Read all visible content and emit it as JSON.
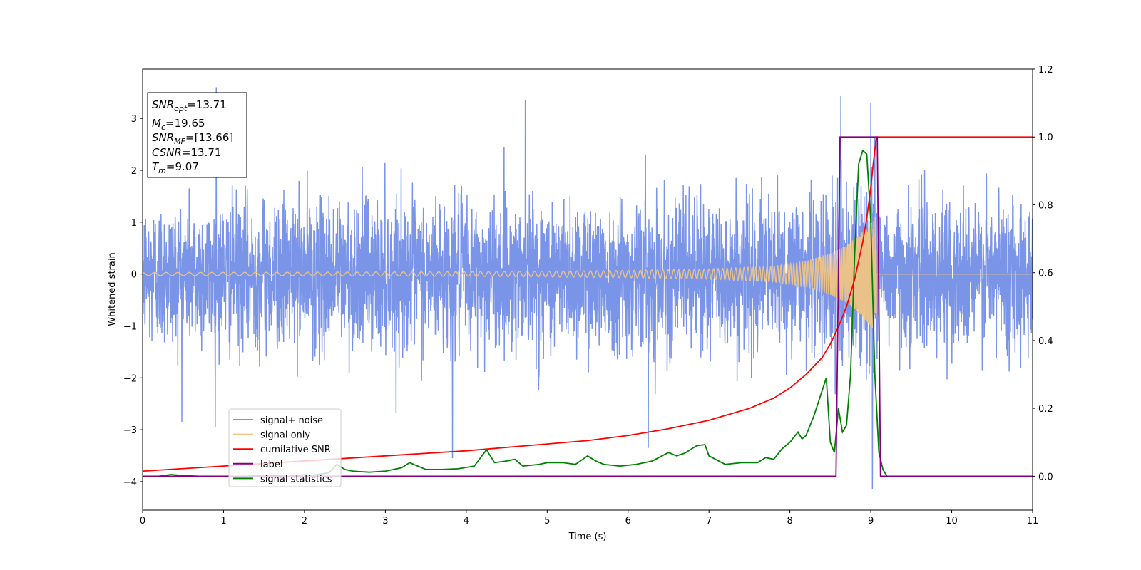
{
  "chart_data": {
    "type": "line",
    "xlabel": "Time (s)",
    "ylabel_left": "Whitened strain",
    "ylabel_right": "",
    "xlim": [
      0,
      11
    ],
    "ylim_left": [
      -4.55,
      3.95
    ],
    "ylim_right": [
      -0.1,
      1.2
    ],
    "x_ticks": [
      "0",
      "1",
      "2",
      "3",
      "4",
      "5",
      "6",
      "7",
      "8",
      "9",
      "10",
      "11"
    ],
    "y_ticks_left": [
      "−4",
      "−3",
      "−2",
      "−1",
      "0",
      "1",
      "2",
      "3"
    ],
    "y_ticks_right": [
      "0.0",
      "0.2",
      "0.4",
      "0.6",
      "0.8",
      "1.0",
      "1.2"
    ],
    "grid": false,
    "legend_position": "lower-left",
    "annotation": {
      "snr_opt": {
        "label": "SNR",
        "sub": "opt",
        "value": "=13.71"
      },
      "mc": {
        "label": "M",
        "sub": "c",
        "value": "=19.65"
      },
      "snr_mf": {
        "label": "SNR",
        "sub": "MF",
        "value": "=[13.66]"
      },
      "csnr": {
        "label": "CSNR",
        "value": "=13.71"
      },
      "tm": {
        "label": "T",
        "sub": "m",
        "value": "=9.07"
      }
    },
    "series": [
      {
        "name": "signal+ noise",
        "axis": "left",
        "color": "#7a94e8",
        "description_values": "random noise, std ≈ 0.7, spanning ≈ −4.2 to 3.6 over t = 0–11 s, max ≈ 3.6 at t ≈ 0.9 s",
        "noise_std": 0.7,
        "extremes": [
          [
            0.91,
            3.6
          ],
          [
            8.63,
            3.43
          ],
          [
            9.0,
            3.3
          ],
          [
            4.73,
            3.35
          ],
          [
            9.02,
            -4.15
          ],
          [
            3.83,
            -3.55
          ],
          [
            6.25,
            -3.35
          ]
        ]
      },
      {
        "name": "signal only",
        "axis": "left",
        "color": "#f5c77e",
        "envelope": [
          [
            0,
            0.03
          ],
          [
            2,
            0.035
          ],
          [
            4,
            0.045
          ],
          [
            6,
            0.07
          ],
          [
            7,
            0.1
          ],
          [
            7.8,
            0.15
          ],
          [
            8.2,
            0.25
          ],
          [
            8.5,
            0.4
          ],
          [
            8.7,
            0.55
          ],
          [
            8.85,
            0.75
          ],
          [
            9.0,
            1.0
          ],
          [
            9.07,
            1.15
          ]
        ],
        "ends_at": 9.07
      },
      {
        "name": "cumilative SNR",
        "axis": "right",
        "color": "#ff0000",
        "x": [
          0,
          1,
          2,
          3,
          4,
          5,
          5.5,
          6,
          6.5,
          7,
          7.5,
          7.8,
          8.0,
          8.2,
          8.4,
          8.5,
          8.6,
          8.7,
          8.8,
          8.9,
          8.95,
          9.0,
          9.03,
          9.05,
          9.07,
          11
        ],
        "y": [
          0.015,
          0.03,
          0.045,
          0.06,
          0.075,
          0.095,
          0.105,
          0.12,
          0.14,
          0.165,
          0.2,
          0.23,
          0.26,
          0.3,
          0.35,
          0.39,
          0.44,
          0.5,
          0.58,
          0.69,
          0.76,
          0.85,
          0.92,
          0.96,
          1.0,
          1.0
        ]
      },
      {
        "name": "label",
        "axis": "right",
        "color": "#800080",
        "x": [
          0,
          8.57,
          8.62,
          9.08,
          9.12,
          11
        ],
        "y": [
          0.0,
          0.0,
          1.0,
          1.0,
          0.0,
          0.0
        ]
      },
      {
        "name": "signal statistics",
        "axis": "right",
        "color": "#008000",
        "x": [
          0,
          0.2,
          0.35,
          0.5,
          0.7,
          1.0,
          1.3,
          1.5,
          1.8,
          2.0,
          2.1,
          2.3,
          2.4,
          2.5,
          2.6,
          2.8,
          3.0,
          3.2,
          3.3,
          3.5,
          3.7,
          3.9,
          4.1,
          4.25,
          4.35,
          4.5,
          4.6,
          4.7,
          4.9,
          5.0,
          5.2,
          5.35,
          5.5,
          5.6,
          5.7,
          5.9,
          6.1,
          6.3,
          6.5,
          6.6,
          6.7,
          6.85,
          6.95,
          7.0,
          7.2,
          7.4,
          7.6,
          7.7,
          7.8,
          7.9,
          8.0,
          8.1,
          8.15,
          8.2,
          8.3,
          8.45,
          8.5,
          8.55,
          8.6,
          8.65,
          8.7,
          8.75,
          8.8,
          8.85,
          8.9,
          8.95,
          9.0,
          9.05,
          9.1,
          9.15,
          9.2,
          9.3,
          11
        ],
        "y": [
          0.0,
          0.0,
          0.005,
          0.002,
          0.0,
          0.0,
          0.0,
          0.003,
          0.0,
          0.005,
          0.003,
          0.01,
          0.035,
          0.02,
          0.015,
          0.012,
          0.015,
          0.025,
          0.04,
          0.02,
          0.02,
          0.022,
          0.03,
          0.078,
          0.04,
          0.045,
          0.05,
          0.03,
          0.035,
          0.04,
          0.04,
          0.035,
          0.06,
          0.045,
          0.035,
          0.03,
          0.035,
          0.045,
          0.07,
          0.06,
          0.068,
          0.09,
          0.093,
          0.06,
          0.035,
          0.04,
          0.04,
          0.055,
          0.05,
          0.08,
          0.1,
          0.13,
          0.11,
          0.12,
          0.18,
          0.29,
          0.1,
          0.07,
          0.2,
          0.13,
          0.15,
          0.3,
          0.65,
          0.92,
          0.96,
          0.95,
          0.75,
          0.3,
          0.07,
          0.02,
          0.0,
          0.0,
          0.0
        ]
      }
    ]
  }
}
